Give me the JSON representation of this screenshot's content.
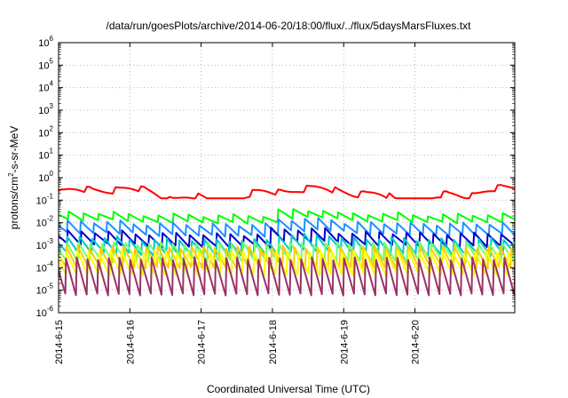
{
  "chart_data": {
    "type": "line",
    "title": "/data/run/goesPlots/archive/2014-06-20/18:00/flux/../flux/5daysMarsFluxes.txt",
    "xlabel": "Coordinated Universal Time (UTC)",
    "ylabel_parts": [
      "protons/cm",
      "2",
      "-s-sr-MeV"
    ],
    "y_scale": "log",
    "ylim": [
      1e-06,
      1000000.0
    ],
    "y_ticks": [
      {
        "base": "10",
        "exp": "-6"
      },
      {
        "base": "10",
        "exp": "-5"
      },
      {
        "base": "10",
        "exp": "-4"
      },
      {
        "base": "10",
        "exp": "-3"
      },
      {
        "base": "10",
        "exp": "-2"
      },
      {
        "base": "10",
        "exp": "-1"
      },
      {
        "base": "10",
        "exp": "0"
      },
      {
        "base": "10",
        "exp": "1"
      },
      {
        "base": "10",
        "exp": "2"
      },
      {
        "base": "10",
        "exp": "3"
      },
      {
        "base": "10",
        "exp": "4"
      },
      {
        "base": "10",
        "exp": "5"
      },
      {
        "base": "10",
        "exp": "6"
      }
    ],
    "xlim_days": [
      0,
      6.4
    ],
    "x_ticks": [
      {
        "label": "2014-6-15",
        "day": 0
      },
      {
        "label": "2014-6-16",
        "day": 1
      },
      {
        "label": "2014-6-17",
        "day": 2
      },
      {
        "label": "2014-6-18",
        "day": 3
      },
      {
        "label": "2014-6-19",
        "day": 4
      },
      {
        "label": "2014-6-20",
        "day": 5
      }
    ],
    "grid": true,
    "series": [
      {
        "color": "#ff0000",
        "width": 2,
        "mode": "red",
        "top": 0.6,
        "bottom": 0.15
      },
      {
        "color": "#00ff00",
        "width": 2,
        "mode": "saw",
        "period": 0.21,
        "top": 0.028,
        "bottom": 0.013,
        "slow": [
          1,
          0.8,
          0.75,
          1.3,
          0.9,
          0.8,
          0.85
        ]
      },
      {
        "color": "#1e90ff",
        "width": 2,
        "mode": "saw",
        "period": 0.185,
        "top": 0.011,
        "bottom": 0.0035,
        "slow": [
          1,
          0.8,
          0.75,
          1.3,
          0.9,
          0.8,
          0.85
        ]
      },
      {
        "color": "#0000c8",
        "width": 2,
        "mode": "saw",
        "period": 0.19,
        "top": 0.004,
        "bottom": 0.0011,
        "slow": [
          1,
          0.8,
          0.75,
          1.3,
          0.9,
          0.8,
          0.85
        ]
      },
      {
        "color": "#00c8c8",
        "width": 2,
        "mode": "saw",
        "period": 0.175,
        "top": 0.0022,
        "bottom": 0.00045,
        "slow": [
          1,
          0.8,
          0.75,
          1.3,
          0.9,
          0.8,
          0.85
        ]
      },
      {
        "color": "#70ff70",
        "width": 2,
        "mode": "saw",
        "period": 0.165,
        "top": 0.0012,
        "bottom": 0.0002
      },
      {
        "color": "#ffcc00",
        "width": 2,
        "mode": "saw",
        "period": 0.16,
        "top": 0.0008,
        "bottom": 0.0001
      },
      {
        "color": "#ffff00",
        "width": 2,
        "mode": "saw",
        "period": 0.155,
        "top": 0.0005,
        "bottom": 5e-05
      },
      {
        "color": "#993366",
        "width": 2,
        "mode": "saw",
        "period": 0.15,
        "top": 0.00025,
        "bottom": 6.5e-06
      }
    ]
  }
}
